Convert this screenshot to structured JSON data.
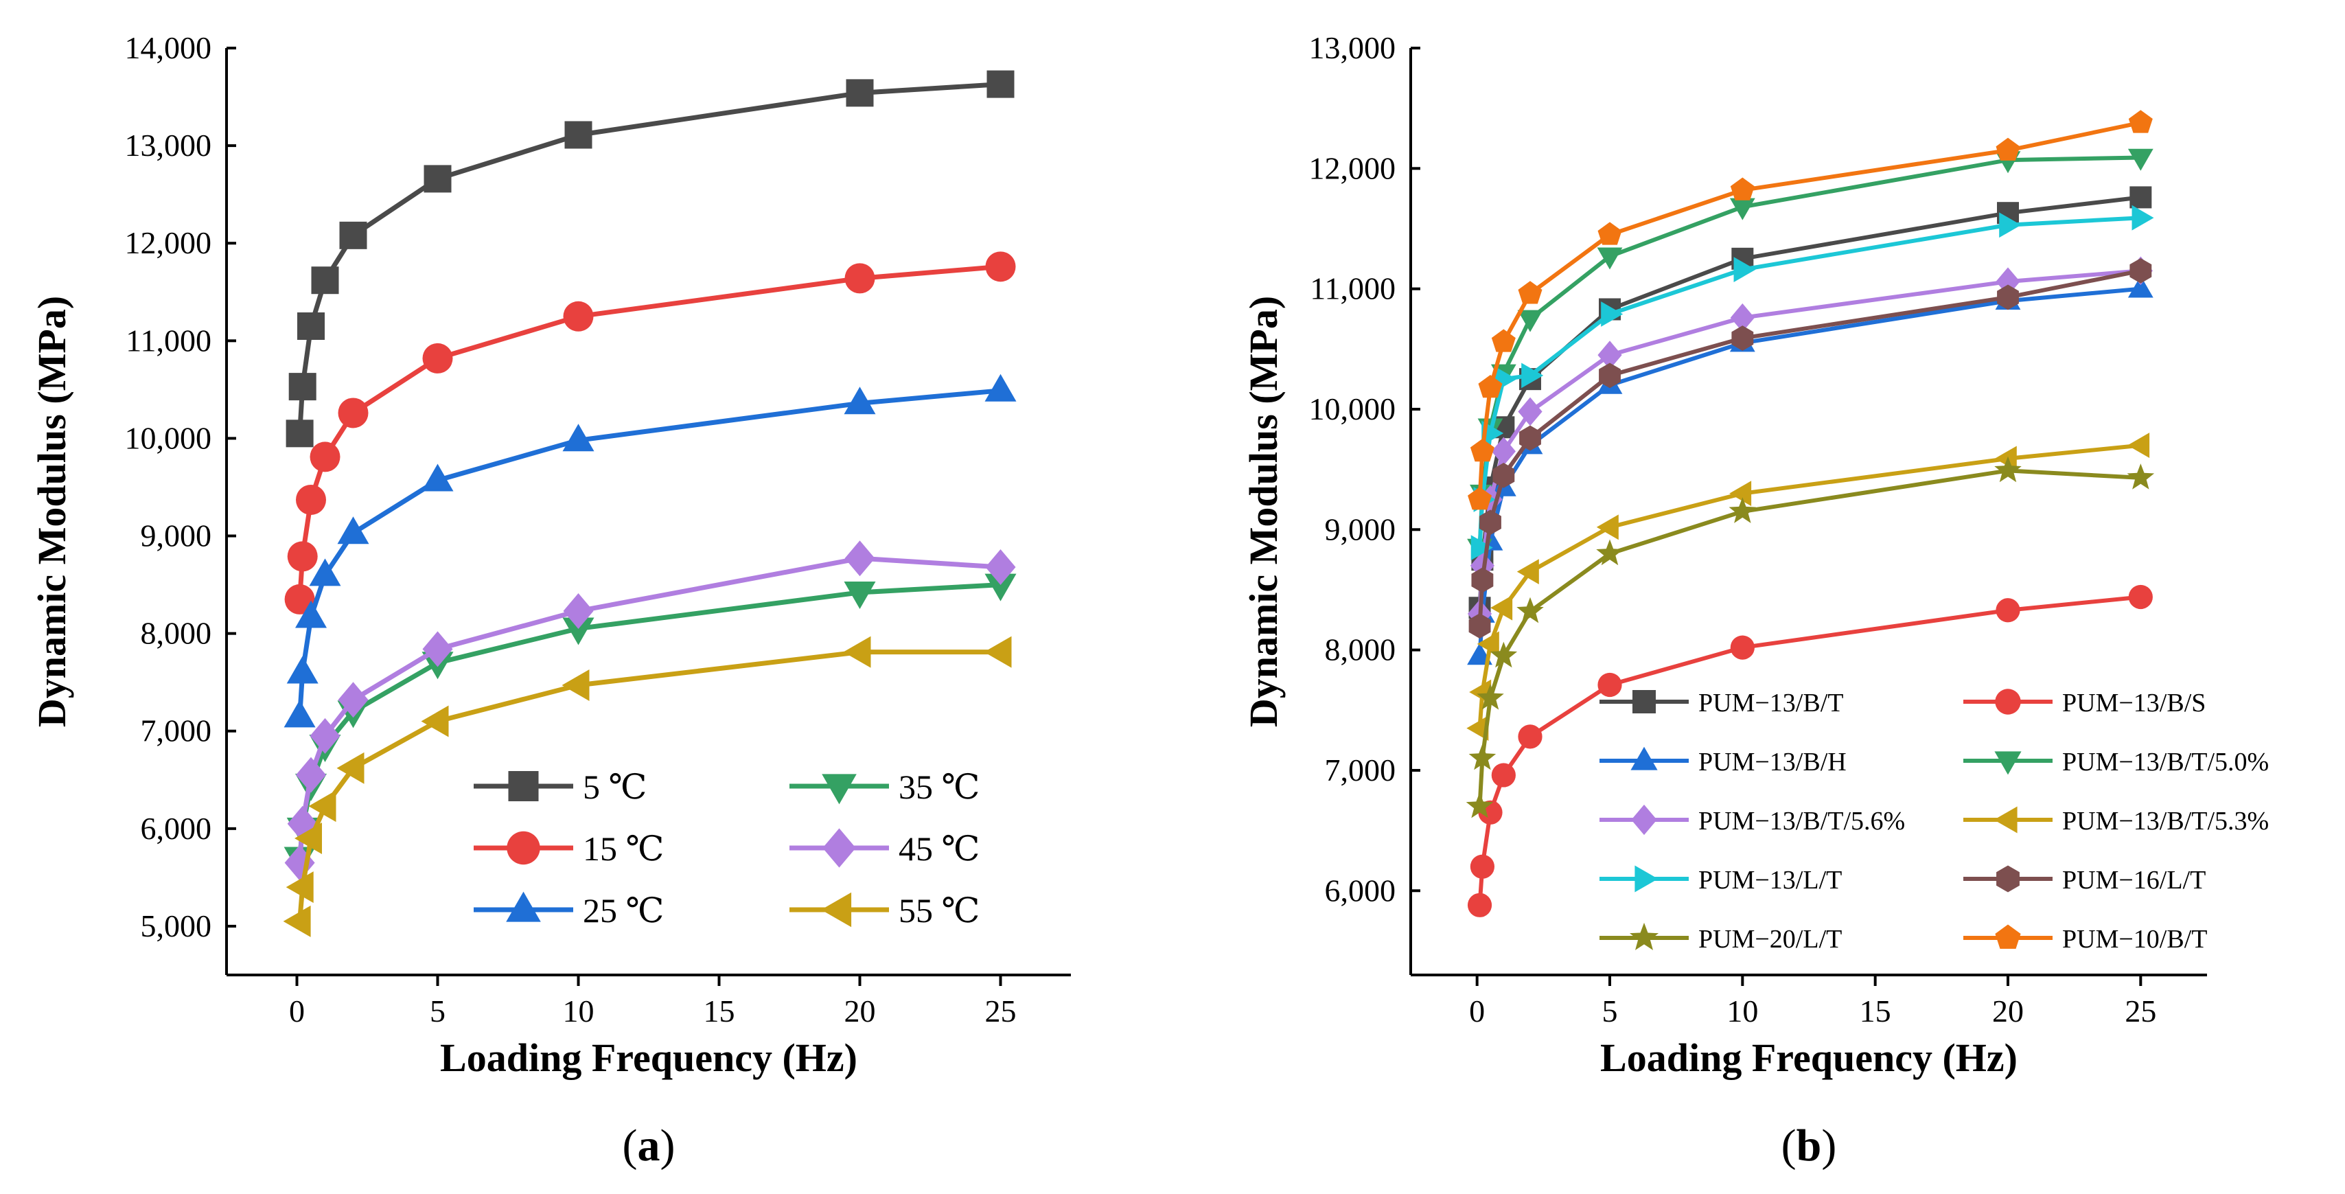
{
  "chart_data": [
    {
      "id": "a",
      "type": "line",
      "caption_open": "(",
      "caption_letter": "a",
      "caption_close": ")",
      "xlabel": "Loading Frequency (Hz)",
      "ylabel": "Dynamic Modulus (MPa)",
      "xlim": [
        -2.5,
        27.5
      ],
      "ylim": [
        4500,
        14000
      ],
      "xticks": [
        0,
        5,
        10,
        15,
        20,
        25
      ],
      "yticks": [
        5000,
        6000,
        7000,
        8000,
        9000,
        10000,
        11000,
        12000,
        13000,
        14000
      ],
      "ytick_labels": [
        "5,000",
        "6,000",
        "7,000",
        "8,000",
        "9,000",
        "10,000",
        "11,000",
        "12,000",
        "13,000",
        "14,000"
      ],
      "x": [
        0.1,
        0.2,
        0.5,
        1,
        2,
        5,
        10,
        20,
        25
      ],
      "legend_position": "bottom-right",
      "series": [
        {
          "name": "5 ℃",
          "color": "#4a4a4a",
          "marker": "square",
          "values": [
            10050,
            10530,
            11150,
            11620,
            12080,
            12660,
            13110,
            13540,
            13630
          ]
        },
        {
          "name": "15 ℃",
          "color": "#e8413e",
          "marker": "circle",
          "values": [
            8350,
            8790,
            9370,
            9810,
            10260,
            10820,
            11250,
            11640,
            11760
          ]
        },
        {
          "name": "25 ℃",
          "color": "#1f6fd6",
          "marker": "triangle-up",
          "values": [
            7150,
            7600,
            8170,
            8600,
            9030,
            9570,
            9980,
            10360,
            10490
          ]
        },
        {
          "name": "35 ℃",
          "color": "#34a163",
          "marker": "triangle-down",
          "values": [
            5700,
            6000,
            6450,
            6850,
            7200,
            7700,
            8050,
            8420,
            8500
          ]
        },
        {
          "name": "45 ℃",
          "color": "#b07ee0",
          "marker": "diamond",
          "values": [
            5650,
            6050,
            6550,
            6950,
            7320,
            7840,
            8230,
            8770,
            8680
          ]
        },
        {
          "name": "55 ℃",
          "color": "#c9a015",
          "marker": "triangle-left",
          "values": [
            5050,
            5400,
            5900,
            6230,
            6620,
            7100,
            7470,
            7810,
            7810
          ]
        }
      ]
    },
    {
      "id": "b",
      "type": "line",
      "caption_open": "(",
      "caption_letter": "b",
      "caption_close": ")",
      "xlabel": "Loading Frequency (Hz)",
      "ylabel": "Dynamic Modulus (MPa)",
      "xlim": [
        -2.5,
        27.5
      ],
      "ylim": [
        5300,
        13000
      ],
      "xticks": [
        0,
        5,
        10,
        15,
        20,
        25
      ],
      "yticks": [
        6000,
        7000,
        8000,
        9000,
        10000,
        11000,
        12000,
        13000
      ],
      "ytick_labels": [
        "6,000",
        "7,000",
        "8,000",
        "9,000",
        "10,000",
        "11,000",
        "12,000",
        "13,000"
      ],
      "x": [
        0.1,
        0.2,
        0.5,
        1,
        2,
        5,
        10,
        20,
        25
      ],
      "legend_position": "bottom-right",
      "series": [
        {
          "name": "PUM−13/B/T",
          "color": "#4a4a4a",
          "marker": "square",
          "values": [
            8350,
            8750,
            9350,
            9850,
            10250,
            10830,
            11250,
            11630,
            11760
          ]
        },
        {
          "name": "PUM−13/B/S",
          "color": "#e8413e",
          "marker": "circle",
          "values": [
            5880,
            6200,
            6650,
            6960,
            7280,
            7710,
            8020,
            8330,
            8440
          ]
        },
        {
          "name": "PUM−13/B/H",
          "color": "#1f6fd6",
          "marker": "triangle-up",
          "values": [
            7950,
            8300,
            8900,
            9350,
            9700,
            10200,
            10550,
            10900,
            11000
          ]
        },
        {
          "name": "PUM−13/B/T/5.0%",
          "color": "#34a163",
          "marker": "triangle-down",
          "values": [
            8850,
            9300,
            9850,
            10300,
            10750,
            11270,
            11680,
            12070,
            12090
          ]
        },
        {
          "name": "PUM−13/B/T/5.6%",
          "color": "#b07ee0",
          "marker": "diamond",
          "values": [
            8300,
            8700,
            9250,
            9650,
            9980,
            10450,
            10760,
            11060,
            11150
          ]
        },
        {
          "name": "PUM−13/B/T/5.3%",
          "color": "#c9a015",
          "marker": "triangle-left",
          "values": [
            7350,
            7650,
            8050,
            8350,
            8650,
            9020,
            9300,
            9590,
            9700
          ]
        },
        {
          "name": "PUM−13/L/T",
          "color": "#1cc7d6",
          "marker": "triangle-right",
          "values": [
            8850,
            9250,
            9800,
            10250,
            10280,
            10790,
            11160,
            11530,
            11590
          ]
        },
        {
          "name": "PUM−16/L/T",
          "color": "#7d4f4f",
          "marker": "hexagon",
          "values": [
            8200,
            8580,
            9060,
            9450,
            9760,
            10280,
            10590,
            10930,
            11150
          ]
        },
        {
          "name": "PUM−20/L/T",
          "color": "#8a8a1e",
          "marker": "star",
          "values": [
            6700,
            7100,
            7600,
            7950,
            8320,
            8800,
            9150,
            9490,
            9430
          ]
        },
        {
          "name": "PUM−10/B/T",
          "color": "#f27511",
          "marker": "pentagon",
          "values": [
            9250,
            9650,
            10180,
            10560,
            10960,
            11450,
            11820,
            12150,
            12380
          ]
        }
      ]
    }
  ]
}
